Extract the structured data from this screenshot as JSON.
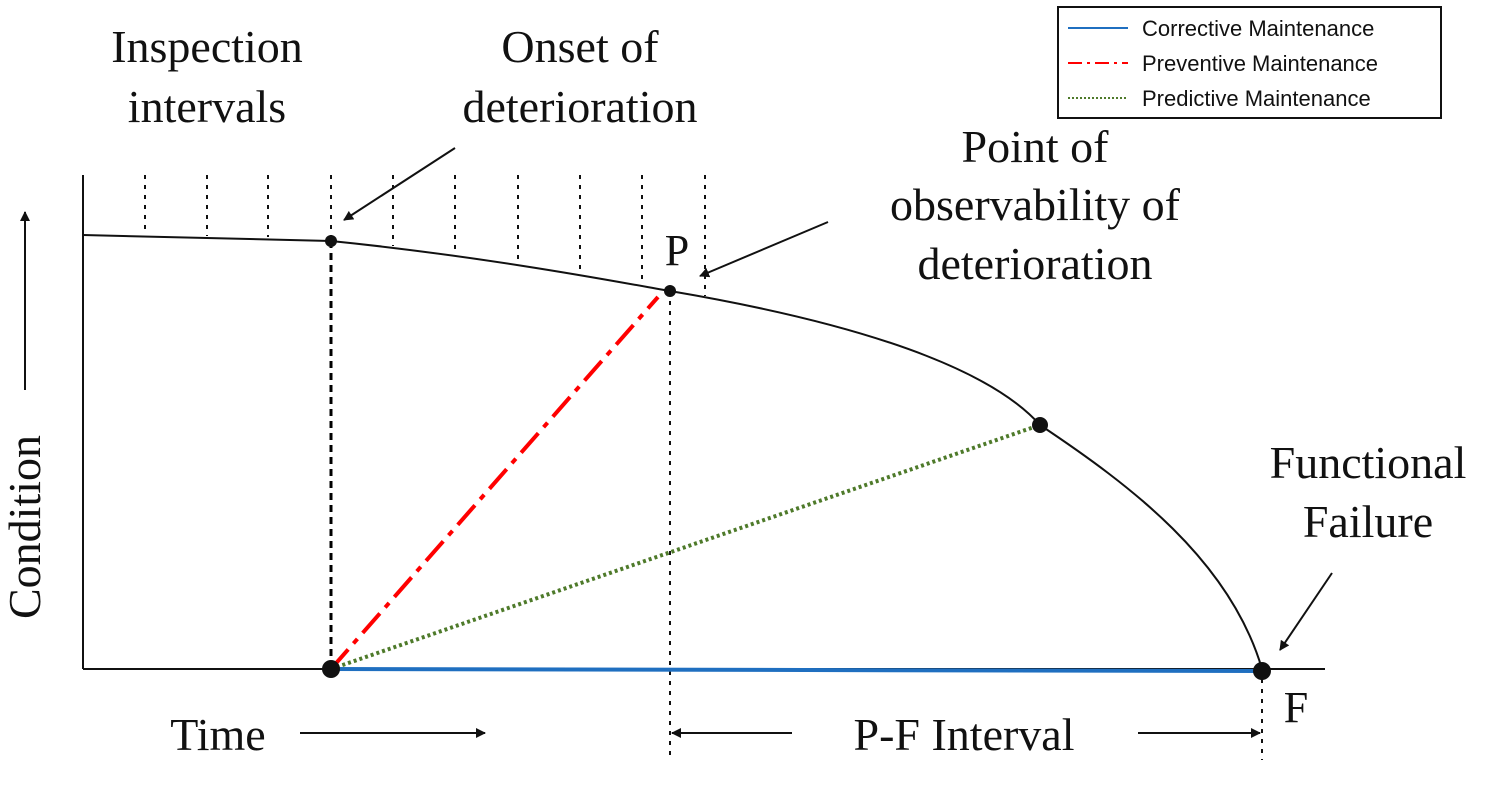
{
  "labels": {
    "inspection_1": "Inspection",
    "inspection_2": "intervals",
    "onset_1": "Onset of",
    "onset_2": "deterioration",
    "point_1": "Point of",
    "point_2": "observability of",
    "point_3": "deterioration",
    "point_p": "P",
    "functional_1": "Functional",
    "functional_2": "Failure",
    "point_f": "F",
    "condition": "Condition",
    "time": "Time",
    "pf_interval": "P-F Interval"
  },
  "legend": {
    "items": [
      {
        "label": "Corrective Maintenance",
        "color": "#1f6fc0",
        "style": "solid"
      },
      {
        "label": "Preventive Maintenance",
        "color": "#ff0000",
        "style": "dash-dot"
      },
      {
        "label": "Predictive Maintenance",
        "color": "#4e7a2a",
        "style": "dotted"
      }
    ]
  },
  "colors": {
    "curve": "#111111",
    "corrective": "#1f6fc0",
    "preventive": "#ff0000",
    "predictive": "#4e7a2a",
    "onset_line": "#000000"
  }
}
